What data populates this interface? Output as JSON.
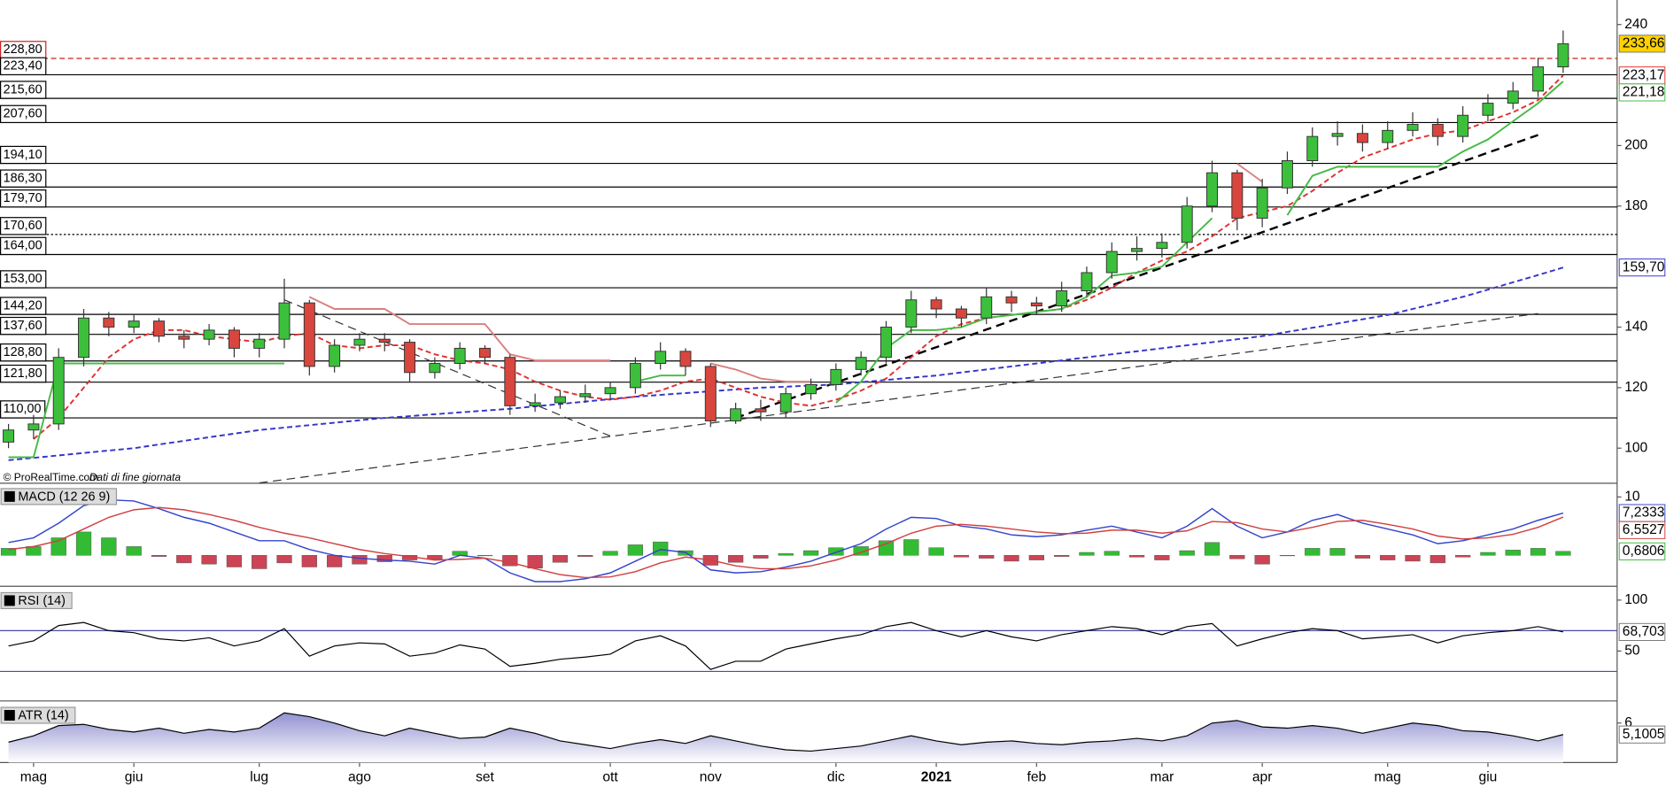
{
  "chart_data": [
    {
      "type": "candlestick",
      "source": "© ProRealTime.com",
      "note": "Dati di fine giornata",
      "categories": [
        null,
        "mag",
        null,
        null,
        null,
        "giu",
        null,
        null,
        null,
        null,
        "lug",
        null,
        null,
        null,
        "ago",
        null,
        null,
        null,
        null,
        "set",
        null,
        null,
        null,
        null,
        "ott",
        null,
        null,
        null,
        "nov",
        null,
        null,
        null,
        null,
        "dic",
        null,
        null,
        null,
        "2021",
        null,
        null,
        null,
        "feb",
        null,
        null,
        null,
        null,
        "mar",
        null,
        null,
        null,
        "apr",
        null,
        null,
        null,
        null,
        "mag",
        null,
        null,
        null,
        "giu",
        null,
        null,
        null
      ],
      "open": [
        102,
        106,
        108,
        130,
        143,
        140,
        142,
        137,
        136,
        139,
        133,
        136,
        148,
        127,
        134,
        136,
        135,
        125,
        128,
        133,
        130,
        114,
        115,
        117,
        118,
        120,
        128,
        132,
        127,
        109,
        113,
        112,
        118,
        121,
        126,
        130,
        140,
        149,
        146,
        143,
        150,
        148,
        147,
        152,
        158,
        165,
        166,
        168,
        180,
        191,
        176,
        186,
        195,
        203,
        204,
        201,
        205,
        207,
        203,
        210,
        214,
        218,
        226
      ],
      "high": [
        108,
        111,
        133,
        146,
        145,
        144,
        143,
        139,
        141,
        140,
        138,
        156,
        149,
        136,
        138,
        138,
        136,
        130,
        135,
        134,
        131,
        118,
        119,
        121,
        122,
        130,
        135,
        133,
        128,
        115,
        116,
        120,
        123,
        128,
        132,
        142,
        152,
        150,
        147,
        153,
        152,
        150,
        155,
        160,
        168,
        170,
        171,
        183,
        195,
        192,
        189,
        198,
        206,
        208,
        207,
        208,
        211,
        209,
        213,
        217,
        221,
        229,
        238
      ],
      "low": [
        100,
        103,
        106,
        127,
        137,
        138,
        135,
        133,
        134,
        130,
        130,
        133,
        124,
        125,
        132,
        132,
        122,
        123,
        126,
        128,
        111,
        112,
        113,
        115,
        116,
        118,
        126,
        124,
        107,
        108,
        109,
        110,
        116,
        119,
        124,
        128,
        138,
        143,
        140,
        141,
        145,
        144,
        145,
        150,
        156,
        162,
        163,
        166,
        178,
        172,
        173,
        184,
        193,
        200,
        198,
        199,
        203,
        200,
        201,
        208,
        212,
        216,
        224
      ],
      "close": [
        106,
        108,
        130,
        143,
        140,
        142,
        137,
        136,
        139,
        133,
        136,
        148,
        127,
        134,
        136,
        135,
        125,
        128,
        133,
        130,
        114,
        115,
        117,
        118,
        120,
        128,
        132,
        127,
        109,
        113,
        112,
        118,
        121,
        126,
        130,
        140,
        149,
        146,
        143,
        150,
        148,
        147,
        152,
        158,
        165,
        166,
        168,
        180,
        191,
        176,
        186,
        195,
        203,
        204,
        201,
        205,
        207,
        203,
        210,
        214,
        218,
        226,
        233.66
      ],
      "last_label": "233,66",
      "badge_color": "#ffd200",
      "up_color": "#3cc03c",
      "down_color": "#d9463e",
      "ylim": [
        88.4,
        248.1
      ],
      "yticks": [
        100,
        120,
        140,
        180,
        200,
        240
      ],
      "lines": [
        {
          "color": "#3333cc",
          "style": "dashed",
          "last_label": "159,70",
          "values": [
            96,
            96.8,
            97.6,
            98.4,
            99.2,
            100,
            101.2,
            102.4,
            103.6,
            104.8,
            106,
            106.8,
            107.6,
            108.4,
            109.2,
            110,
            110.6,
            111.2,
            111.8,
            112.4,
            113,
            113.8,
            114.6,
            115.4,
            116.2,
            117,
            117.6,
            118.2,
            118.8,
            119.4,
            120,
            120.3,
            120.7,
            121,
            121.8,
            122.5,
            123.3,
            124,
            125,
            126,
            127,
            128,
            129,
            130,
            131,
            132,
            133,
            134,
            135,
            136,
            137,
            138.4,
            139.8,
            141.2,
            142.6,
            144,
            146,
            148,
            150,
            152.4,
            154.8,
            157.2,
            159.7
          ]
        },
        {
          "color": "#e03030",
          "style": "dashed",
          "last_label": "223,17",
          "values": [
            null,
            103,
            110,
            120,
            130,
            136,
            139,
            139,
            137,
            136,
            135,
            137,
            138,
            134,
            133,
            134,
            134,
            131,
            129,
            128,
            126,
            122,
            119,
            117,
            116,
            117,
            119,
            122,
            123,
            120,
            117,
            115,
            114,
            116,
            119,
            123,
            130,
            137,
            141,
            143,
            144,
            145,
            146,
            149,
            153,
            158,
            162,
            165,
            170,
            176,
            178,
            180,
            185,
            191,
            196,
            199,
            202,
            204,
            205,
            208,
            211,
            215,
            223.17
          ]
        },
        {
          "color": "#d98080",
          "style": "solid",
          "values": [
            null,
            null,
            null,
            null,
            null,
            null,
            null,
            null,
            null,
            null,
            null,
            null,
            150,
            146,
            146,
            146,
            141,
            141,
            141,
            141,
            131,
            129,
            129,
            129,
            129,
            null,
            null,
            null,
            128,
            126,
            123,
            122,
            122,
            null,
            null,
            null,
            null,
            null,
            null,
            null,
            null,
            null,
            null,
            null,
            null,
            null,
            null,
            null,
            null,
            194,
            188,
            null,
            null,
            null,
            null,
            null,
            null,
            null,
            null,
            null,
            null,
            null,
            null
          ]
        },
        {
          "color": "#44bb44",
          "style": "solid",
          "last_label": "221,18",
          "values": [
            97,
            97,
            128,
            128,
            128,
            128,
            128,
            128,
            128,
            128,
            128,
            128,
            null,
            null,
            null,
            null,
            null,
            null,
            null,
            null,
            null,
            null,
            null,
            null,
            null,
            122,
            124,
            124,
            null,
            null,
            null,
            null,
            null,
            115,
            122,
            133,
            139,
            139,
            140,
            143,
            144,
            145,
            146,
            150,
            157,
            158,
            160,
            168,
            176,
            null,
            null,
            177,
            190,
            193,
            193,
            193,
            193,
            193,
            198,
            202,
            208,
            214,
            221.18
          ]
        }
      ],
      "trendlines": [
        {
          "color": "#333333",
          "width": 1,
          "x": [
            10,
            61
          ],
          "values": [
            88.5,
            144.5
          ]
        },
        {
          "color": "#333333",
          "width": 1,
          "x": [
            11,
            24
          ],
          "values": [
            149,
            104
          ]
        },
        {
          "color": "#000000",
          "width": 2,
          "x": [
            29,
            61
          ],
          "values": [
            110,
            203.5
          ]
        }
      ],
      "levels": [
        {
          "value": 228.8,
          "label": "228,80",
          "color": "#cc2222",
          "style": "dashed"
        },
        {
          "value": 223.4,
          "label": "223,40",
          "color": "#000000",
          "style": "solid"
        },
        {
          "value": 215.6,
          "label": "215,60",
          "color": "#000000",
          "style": "solid"
        },
        {
          "value": 207.6,
          "label": "207,60",
          "color": "#000000",
          "style": "solid"
        },
        {
          "value": 194.1,
          "label": "194,10",
          "color": "#000000",
          "style": "solid"
        },
        {
          "value": 186.3,
          "label": "186,30",
          "color": "#000000",
          "style": "solid"
        },
        {
          "value": 179.7,
          "label": "179,70",
          "color": "#000000",
          "style": "solid"
        },
        {
          "value": 170.6,
          "label": "170,60",
          "color": "#000000",
          "style": "dotted"
        },
        {
          "value": 164,
          "label": "164,00",
          "color": "#000000",
          "style": "solid"
        },
        {
          "value": 153,
          "label": "153,00",
          "color": "#000000",
          "style": "solid"
        },
        {
          "value": 144.2,
          "label": "144,20",
          "color": "#000000",
          "style": "solid"
        },
        {
          "value": 137.6,
          "label": "137,60",
          "color": "#000000",
          "style": "solid"
        },
        {
          "value": 128.8,
          "label": "128,80",
          "color": "#000000",
          "style": "solid"
        },
        {
          "value": 121.8,
          "label": "121,80",
          "color": "#000000",
          "style": "solid"
        },
        {
          "value": 110,
          "label": "110,00",
          "color": "#000000",
          "style": "solid"
        }
      ]
    },
    {
      "type": "macd",
      "title": "MACD (12 26 9)",
      "ylim": [
        -5.3,
        11.8
      ],
      "yticks": [
        10
      ],
      "series": [
        {
          "color": "#3344cc",
          "last_label": "7,2333",
          "values": [
            2.2,
            3,
            5.5,
            8.5,
            9.5,
            9.3,
            8,
            6.5,
            5.5,
            4,
            2.5,
            2.5,
            1,
            0,
            -0.5,
            -0.8,
            -1,
            -1.5,
            0,
            -0.5,
            -3,
            -4.5,
            -4.5,
            -4,
            -3,
            -1,
            1,
            0.5,
            -2.5,
            -3,
            -2.8,
            -2,
            -1,
            0.5,
            2,
            4.5,
            6.5,
            6.3,
            5,
            4.5,
            3.5,
            3.2,
            3.5,
            4.3,
            5,
            4,
            3,
            5,
            8,
            5,
            3,
            4,
            6,
            7,
            5.5,
            4.5,
            3.5,
            2,
            2.5,
            3.5,
            4.5,
            6,
            7.2333
          ]
        },
        {
          "color": "#d04040",
          "last_label": "6,5527",
          "values": [
            1,
            1.5,
            2.5,
            4.5,
            6.5,
            7.8,
            8.2,
            7.8,
            7,
            6,
            4.8,
            3.8,
            3,
            2,
            1,
            0.3,
            -0.2,
            -0.8,
            -0.7,
            -0.5,
            -1.2,
            -2.3,
            -3.3,
            -3.8,
            -3.7,
            -2.8,
            -1.3,
            -0.3,
            -0.8,
            -1.8,
            -2.3,
            -2.3,
            -1.8,
            -0.8,
            0.5,
            2,
            3.8,
            5,
            5.3,
            5,
            4.5,
            4,
            3.7,
            3.8,
            4.3,
            4.3,
            3.8,
            4.2,
            5.8,
            5.6,
            4.5,
            4,
            4.8,
            5.8,
            6,
            5.3,
            4.5,
            3.3,
            2.8,
            3,
            3.6,
            4.8,
            6.5527
          ]
        }
      ],
      "histogram": {
        "up_color": "#33bb33",
        "down_color": "#cc4455",
        "last_label": "0,6806",
        "values": [
          1.2,
          1.5,
          3,
          4,
          3,
          1.5,
          -0.2,
          -1.3,
          -1.5,
          -2,
          -2.3,
          -1.3,
          -2,
          -2,
          -1.5,
          -1.1,
          -0.8,
          -0.7,
          0.7,
          0,
          -1.8,
          -2.2,
          -1.2,
          -0.2,
          0.7,
          1.8,
          2.3,
          0.8,
          -1.7,
          -1.2,
          -0.5,
          0.3,
          0.8,
          1.3,
          1.5,
          2.5,
          2.7,
          1.3,
          -0.3,
          -0.5,
          -1,
          -0.8,
          -0.2,
          0.5,
          0.7,
          -0.3,
          -0.8,
          0.8,
          2.2,
          -0.6,
          -1.5,
          0,
          1.2,
          1.2,
          -0.5,
          -0.8,
          -1,
          -1.3,
          -0.3,
          0.5,
          0.9,
          1.2,
          0.6806
        ]
      }
    },
    {
      "type": "line",
      "title": "RSI (14)",
      "ylim": [
        1,
        109.4
      ],
      "yticks": [
        50,
        100
      ],
      "levels": [
        70,
        30
      ],
      "level_color": "#4a4aa8",
      "series": [
        {
          "color": "#000000",
          "last_label": "68,703",
          "values": [
            55,
            60,
            75,
            78,
            70,
            68,
            62,
            60,
            63,
            55,
            60,
            72,
            45,
            55,
            58,
            57,
            45,
            48,
            56,
            52,
            35,
            38,
            42,
            44,
            47,
            60,
            65,
            55,
            32,
            40,
            40,
            52,
            57,
            62,
            66,
            74,
            78,
            70,
            64,
            70,
            64,
            60,
            66,
            70,
            74,
            72,
            66,
            74,
            77,
            55,
            62,
            68,
            72,
            70,
            62,
            64,
            66,
            58,
            65,
            68,
            70,
            74,
            68.703
          ]
        }
      ]
    },
    {
      "type": "area",
      "title": "ATR (14)",
      "ylim": [
        2.9,
        7.4
      ],
      "yticks": [
        6
      ],
      "color": "#000000",
      "fill": "#8c8cd0",
      "last_label": "5,1005",
      "values": [
        4.5,
        5,
        5.8,
        5.9,
        5.5,
        5.3,
        5.6,
        5.2,
        5.5,
        5.3,
        5.6,
        6.8,
        6.5,
        6,
        5.4,
        5,
        5.6,
        5.2,
        4.8,
        4.9,
        5.6,
        5.2,
        4.6,
        4.3,
        4,
        4.4,
        4.7,
        4.4,
        5,
        4.6,
        4.2,
        3.9,
        3.8,
        4,
        4.2,
        4.6,
        5,
        4.6,
        4.3,
        4.5,
        4.6,
        4.4,
        4.3,
        4.5,
        4.6,
        4.8,
        4.6,
        5,
        6,
        6.2,
        5.7,
        5.6,
        5.8,
        5.6,
        5.2,
        5.6,
        6,
        5.8,
        5.4,
        5.3,
        5,
        4.6,
        5.1005
      ]
    }
  ]
}
